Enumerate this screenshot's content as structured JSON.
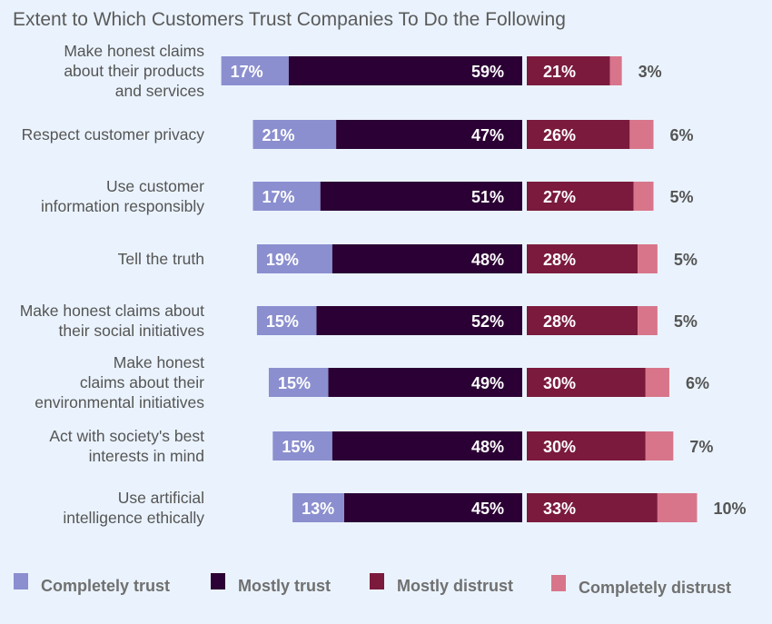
{
  "chart_data": {
    "type": "bar",
    "orientation": "horizontal",
    "stacking": "diverging",
    "title": "Extent to Which Customers Trust Companies To Do  the Following",
    "categories": [
      [
        "Make honest claims",
        "about their products",
        "and services"
      ],
      [
        "Respect customer privacy"
      ],
      [
        "Use customer",
        "information responsibly"
      ],
      [
        "Tell the truth"
      ],
      [
        "Make honest claims about",
        "their social initiatives"
      ],
      [
        "Make honest",
        "claims about their",
        "environmental initiatives"
      ],
      [
        "Act with society's best",
        "interests in mind"
      ],
      [
        "Use artificial",
        "intelligence ethically"
      ]
    ],
    "series": [
      {
        "name": "Completely trust",
        "side": "left",
        "color": "#8b8fcf",
        "values": [
          17,
          21,
          17,
          19,
          15,
          15,
          15,
          13
        ]
      },
      {
        "name": "Mostly trust",
        "side": "left",
        "color": "#2b0034",
        "values": [
          59,
          47,
          51,
          48,
          52,
          49,
          48,
          45
        ]
      },
      {
        "name": "Mostly distrust",
        "side": "right",
        "color": "#7b1a3d",
        "values": [
          21,
          26,
          27,
          28,
          28,
          30,
          30,
          33
        ]
      },
      {
        "name": "Completely distrust",
        "side": "right",
        "color": "#d8758a",
        "values": [
          3,
          6,
          5,
          5,
          5,
          6,
          7,
          10
        ]
      }
    ],
    "unit": "%",
    "legend": "bottom",
    "grid": false
  }
}
